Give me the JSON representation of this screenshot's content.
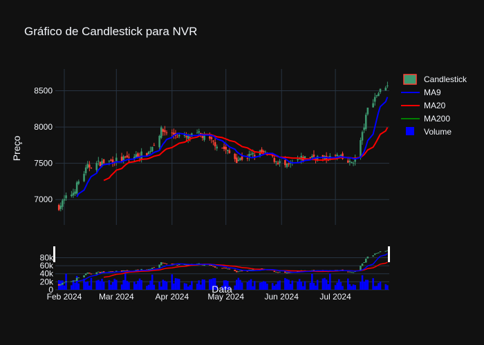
{
  "chart_data": {
    "type": "candlestick",
    "title": "Gráfico de Candlestick para NVR",
    "ylabel": "Preço",
    "xlabel": "Data",
    "colors": {
      "background": "#111111",
      "grid": "#283442",
      "increasing": "#3d9970",
      "decreasing": "#ff4136",
      "ma9": "#0000ff",
      "ma20": "#ff0000",
      "ma200": "#008000",
      "volume": "#0000ff"
    },
    "legend_position": "top-right",
    "legend": [
      "Candlestick",
      "MA9",
      "MA20",
      "MA200",
      "Volume"
    ],
    "price_axis": {
      "range": [
        6650,
        8800
      ],
      "ticks": [
        "7000",
        "7500",
        "8000",
        "8500"
      ],
      "tick_values": [
        7000,
        7500,
        8000,
        8500
      ]
    },
    "volume_axis": {
      "range": [
        0,
        110000
      ],
      "ticks": [
        "0",
        "20k",
        "40k",
        "60k",
        "80k"
      ],
      "tick_values": [
        0,
        20000,
        40000,
        60000,
        80000
      ]
    },
    "x_axis": {
      "range": [
        "2024-01-27",
        "2024-07-31"
      ],
      "ticks": [
        "Feb 2024",
        "Mar 2024",
        "Apr 2024",
        "May 2024",
        "Jun 2024",
        "Jul 2024"
      ],
      "tick_dates": [
        "2024-02-01",
        "2024-03-01",
        "2024-04-01",
        "2024-05-01",
        "2024-06-01",
        "2024-07-01"
      ]
    },
    "close_keypoints": [
      [
        "2024-01-29",
        6900
      ],
      [
        "2024-02-02",
        7020
      ],
      [
        "2024-02-06",
        7100
      ],
      [
        "2024-02-09",
        7250
      ],
      [
        "2024-02-14",
        7450
      ],
      [
        "2024-02-20",
        7500
      ],
      [
        "2024-02-27",
        7530
      ],
      [
        "2024-03-05",
        7560
      ],
      [
        "2024-03-12",
        7600
      ],
      [
        "2024-03-19",
        7650
      ],
      [
        "2024-03-26",
        7950
      ],
      [
        "2024-04-02",
        7900
      ],
      [
        "2024-04-09",
        7850
      ],
      [
        "2024-04-16",
        7900
      ],
      [
        "2024-04-23",
        7800
      ],
      [
        "2024-04-30",
        7700
      ],
      [
        "2024-05-07",
        7550
      ],
      [
        "2024-05-14",
        7600
      ],
      [
        "2024-05-21",
        7650
      ],
      [
        "2024-05-28",
        7550
      ],
      [
        "2024-06-04",
        7450
      ],
      [
        "2024-06-11",
        7550
      ],
      [
        "2024-06-18",
        7600
      ],
      [
        "2024-06-25",
        7560
      ],
      [
        "2024-07-02",
        7600
      ],
      [
        "2024-07-09",
        7500
      ],
      [
        "2024-07-12",
        7560
      ],
      [
        "2024-07-16",
        7900
      ],
      [
        "2024-07-19",
        8250
      ],
      [
        "2024-07-24",
        8450
      ],
      [
        "2024-07-30",
        8600
      ]
    ]
  }
}
